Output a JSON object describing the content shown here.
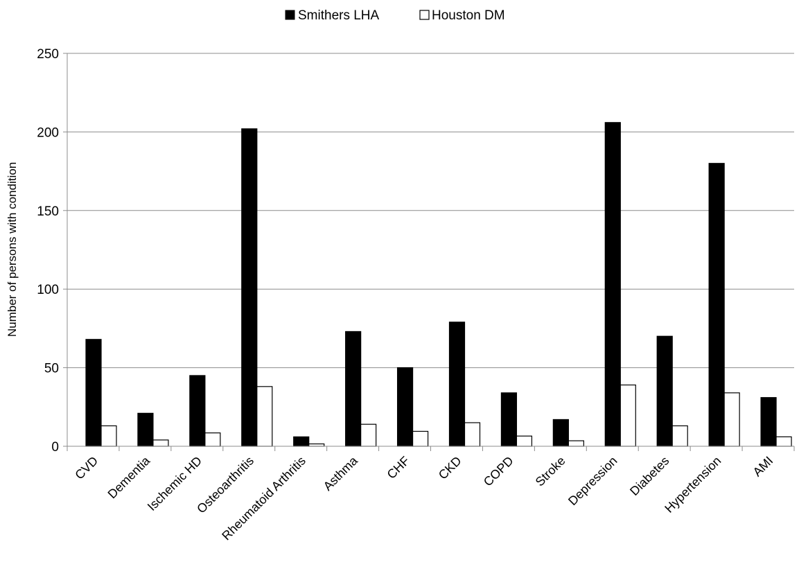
{
  "chart_data": {
    "type": "bar",
    "title": "",
    "xlabel": "",
    "ylabel": "Number of persons with condition",
    "ylim": [
      0,
      250
    ],
    "yticks": [
      0,
      50,
      100,
      150,
      200,
      250
    ],
    "grid": true,
    "legend_position": "top-center",
    "categories": [
      "CVD",
      "Dementia",
      "Ischemic HD",
      "Osteoarthritis",
      "Rheumatoid Arthritis",
      "Asthma",
      "CHF",
      "CKD",
      "COPD",
      "Stroke",
      "Depression",
      "Diabetes",
      "Hypertension",
      "AMI"
    ],
    "series": [
      {
        "name": "Smithers LHA",
        "color": "#000000",
        "values": [
          68,
          21,
          45,
          202,
          6,
          73,
          50,
          79,
          34,
          17,
          206,
          70,
          180,
          31
        ]
      },
      {
        "name": "Houston DM",
        "color": "#ffffff",
        "values": [
          13,
          4,
          8.5,
          38,
          1.5,
          14,
          9.5,
          15,
          6.5,
          3.5,
          39,
          13,
          34,
          6
        ]
      }
    ]
  }
}
